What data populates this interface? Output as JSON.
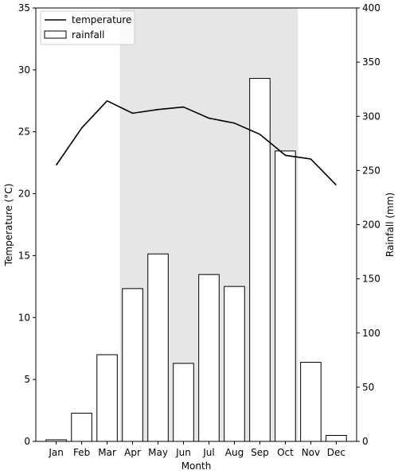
{
  "chart_data": {
    "type": "bar+line",
    "categories": [
      "Jan",
      "Feb",
      "Mar",
      "Apr",
      "May",
      "Jun",
      "Jul",
      "Aug",
      "Sep",
      "Oct",
      "Nov",
      "Dec"
    ],
    "xlabel": "Month",
    "y_left": {
      "label": "Temperature (°C)",
      "lim": [
        0,
        35
      ],
      "ticks": [
        0,
        5,
        10,
        15,
        20,
        25,
        30,
        35
      ]
    },
    "y_right": {
      "label": "Rainfall (mm)",
      "lim": [
        0,
        400
      ],
      "ticks": [
        0,
        50,
        100,
        150,
        200,
        250,
        300,
        350,
        400
      ]
    },
    "series": [
      {
        "name": "temperature",
        "type": "line",
        "axis": "left",
        "values": [
          22.3,
          25.3,
          27.5,
          26.5,
          26.8,
          27.0,
          26.1,
          25.7,
          24.8,
          23.1,
          22.8,
          20.7
        ]
      },
      {
        "name": "rainfall",
        "type": "bar",
        "axis": "right",
        "values": [
          1.5,
          26,
          80,
          141,
          173,
          72,
          154,
          143,
          335,
          268,
          73,
          5.5
        ]
      }
    ],
    "shaded_span": {
      "from": "Apr",
      "to": "Oct"
    },
    "legend": {
      "position": "top-left"
    },
    "grid": false,
    "colors": {
      "line": "#000000",
      "bar_fill": "#ffffff",
      "bar_edge": "#000000",
      "shade": "#e6e6e6"
    }
  }
}
